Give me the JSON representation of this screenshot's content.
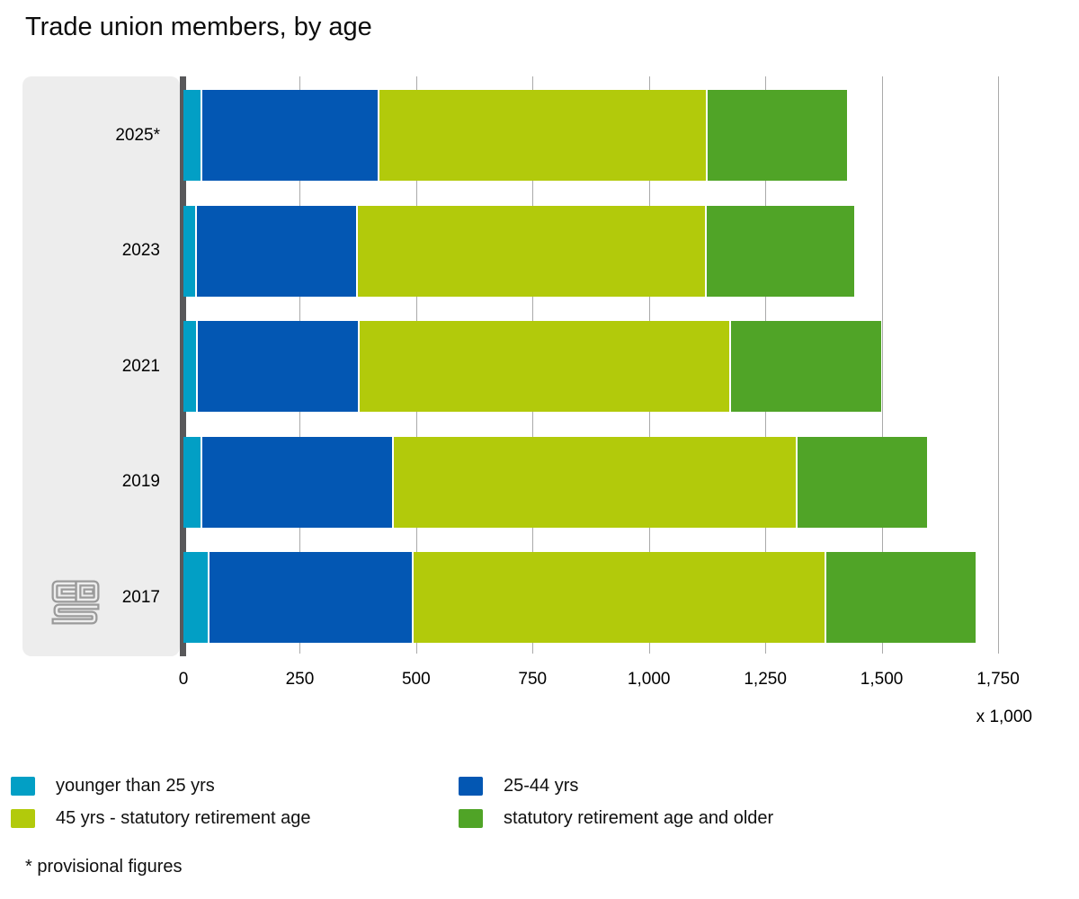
{
  "title": "Trade union members, by age",
  "footnote": "* provisional figures",
  "axis": {
    "unit_label": "x 1,000",
    "tick_values": [
      0,
      250,
      500,
      750,
      1000,
      1250,
      1500,
      1750
    ],
    "tick_labels": [
      "0",
      "250",
      "500",
      "750",
      "1,000",
      "1,250",
      "1,500",
      "1,750"
    ],
    "max": 1820
  },
  "colors": {
    "younger_than_25": "#029fc5",
    "age_25_44": "#0357b3",
    "age_45_retirement": "#b2ca0b",
    "retirement_and_older": "#50a427",
    "panel": "#ededed",
    "axis_line": "#58585a",
    "gridline": "#aaaaaa"
  },
  "logo": {
    "name": "cbs-logo"
  },
  "chart_data": {
    "type": "bar",
    "orientation": "horizontal",
    "stacked": true,
    "title": "Trade union members, by age",
    "xlabel": "x 1,000",
    "ylabel": "",
    "xlim": [
      0,
      1820
    ],
    "grid": true,
    "legend_position": "bottom",
    "categories": [
      "2025*",
      "2023",
      "2021",
      "2019",
      "2017"
    ],
    "series": [
      {
        "name": "younger than 25 yrs",
        "color": "#029fc5",
        "values": [
          40,
          29,
          31,
          41,
          56
        ]
      },
      {
        "name": "25-44 yrs",
        "color": "#0357b3",
        "values": [
          382,
          346,
          347,
          411,
          438
        ]
      },
      {
        "name": "45 yrs - statutory retirement age",
        "color": "#b2ca0b",
        "values": [
          705,
          749,
          799,
          868,
          888
        ]
      },
      {
        "name": "statutory retirement age and older",
        "color": "#50a427",
        "values": [
          298,
          317,
          322,
          278,
          320
        ]
      }
    ],
    "totals": [
      1425,
      1441,
      1499,
      1598,
      1702
    ]
  }
}
